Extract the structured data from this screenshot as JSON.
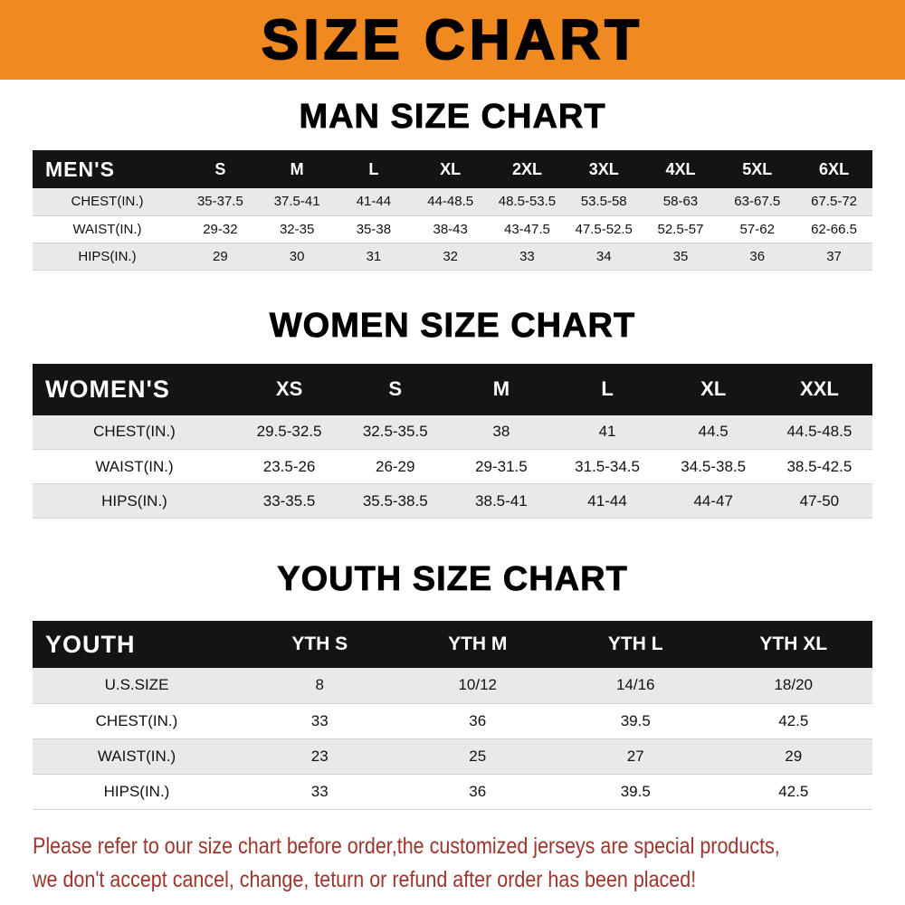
{
  "colors": {
    "banner_bg": "#f0891f",
    "table_header_bg": "#141414",
    "row_alt_bg": "#e9e9e9",
    "note_color": "#9d352c"
  },
  "banner": {
    "title": "SIZE CHART"
  },
  "chart_data": [
    {
      "type": "table",
      "title": "MAN SIZE CHART",
      "corner_label": "MEN'S",
      "columns": [
        "S",
        "M",
        "L",
        "XL",
        "2XL",
        "3XL",
        "4XL",
        "5XL",
        "6XL"
      ],
      "rows": [
        {
          "label": "CHEST(IN.)",
          "values": [
            "35-37.5",
            "37.5-41",
            "41-44",
            "44-48.5",
            "48.5-53.5",
            "53.5-58",
            "58-63",
            "63-67.5",
            "67.5-72"
          ]
        },
        {
          "label": "WAIST(IN.)",
          "values": [
            "29-32",
            "32-35",
            "35-38",
            "38-43",
            "43-47.5",
            "47.5-52.5",
            "52.5-57",
            "57-62",
            "62-66.5"
          ]
        },
        {
          "label": "HIPS(IN.)",
          "values": [
            "29",
            "30",
            "31",
            "32",
            "33",
            "34",
            "35",
            "36",
            "37"
          ]
        }
      ]
    },
    {
      "type": "table",
      "title": "WOMEN SIZE CHART",
      "corner_label": "WOMEN'S",
      "columns": [
        "XS",
        "S",
        "M",
        "L",
        "XL",
        "XXL"
      ],
      "rows": [
        {
          "label": "CHEST(IN.)",
          "values": [
            "29.5-32.5",
            "32.5-35.5",
            "38",
            "41",
            "44.5",
            "44.5-48.5"
          ]
        },
        {
          "label": "WAIST(IN.)",
          "values": [
            "23.5-26",
            "26-29",
            "29-31.5",
            "31.5-34.5",
            "34.5-38.5",
            "38.5-42.5"
          ]
        },
        {
          "label": "HIPS(IN.)",
          "values": [
            "33-35.5",
            "35.5-38.5",
            "38.5-41",
            "41-44",
            "44-47",
            "47-50"
          ]
        }
      ]
    },
    {
      "type": "table",
      "title": "YOUTH SIZE CHART",
      "corner_label": "YOUTH",
      "columns": [
        "YTH S",
        "YTH M",
        "YTH L",
        "YTH XL"
      ],
      "rows": [
        {
          "label": "U.S.SIZE",
          "values": [
            "8",
            "10/12",
            "14/16",
            "18/20"
          ]
        },
        {
          "label": "CHEST(IN.)",
          "values": [
            "33",
            "36",
            "39.5",
            "42.5"
          ]
        },
        {
          "label": "WAIST(IN.)",
          "values": [
            "23",
            "25",
            "27",
            "29"
          ]
        },
        {
          "label": "HIPS(IN.)",
          "values": [
            "33",
            "36",
            "39.5",
            "42.5"
          ]
        }
      ]
    }
  ],
  "footer_note": {
    "lines": [
      "Please refer to our size chart before order,the customized jerseys are special products,",
      "we don't accept cancel, change, teturn or refund after order has been placed!"
    ]
  }
}
